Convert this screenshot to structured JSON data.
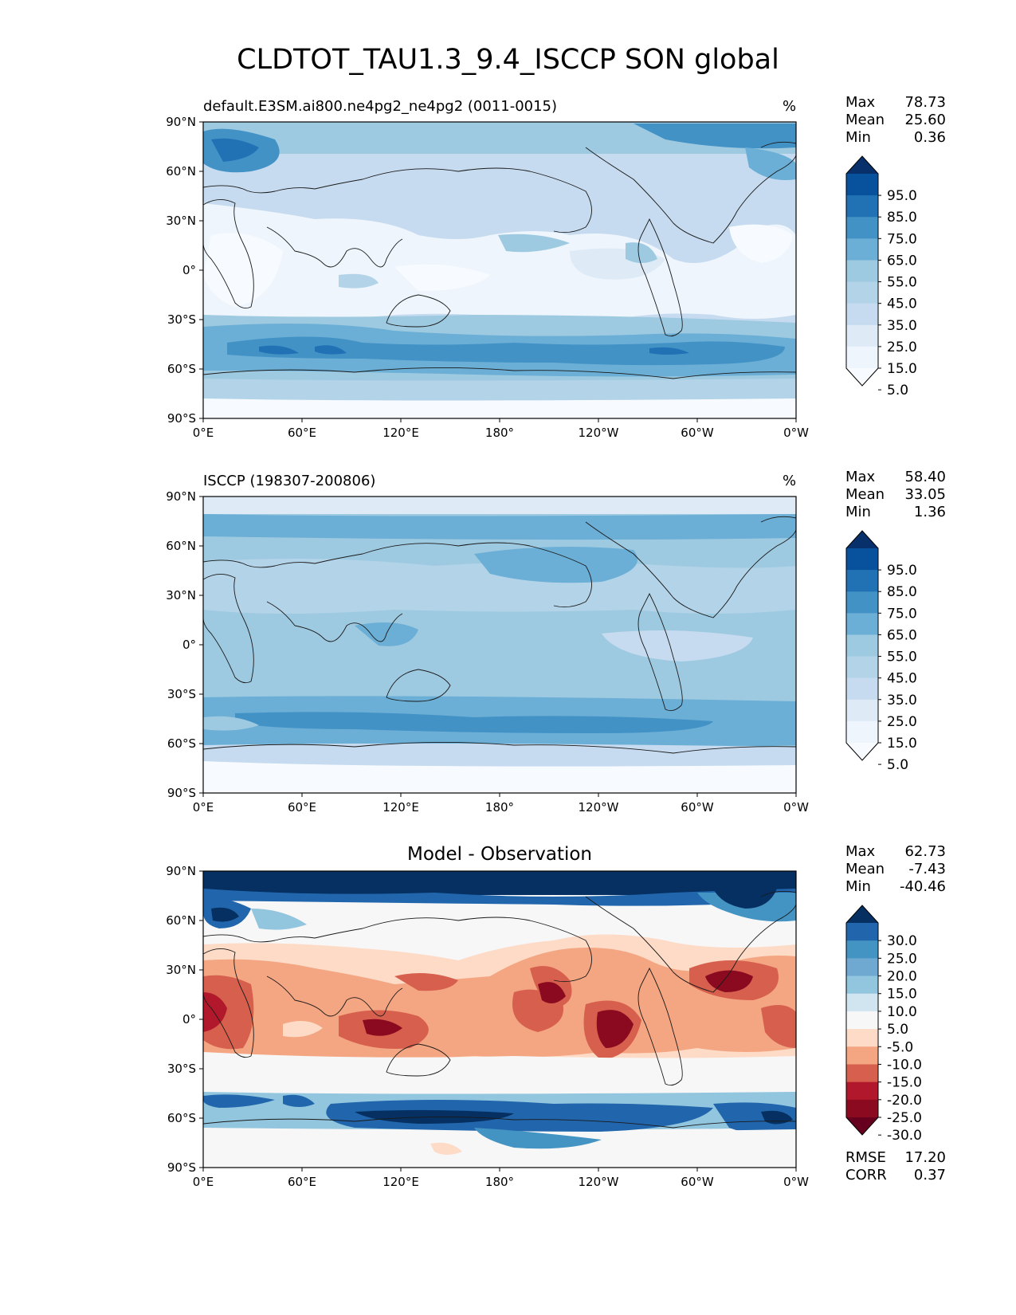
{
  "title": "CLDTOT_TAU1.3_9.4_ISCCP SON global",
  "axes": {
    "lat_labels": [
      "90°N",
      "60°N",
      "30°N",
      "0°",
      "30°S",
      "60°S",
      "90°S"
    ],
    "lon_labels": [
      "0°E",
      "60°E",
      "120°E",
      "180°",
      "120°W",
      "60°W",
      "0°W"
    ]
  },
  "panels": [
    {
      "subtitle": "default.E3SM.ai800.ne4pg2_ne4pg2 (0011-0015)",
      "units": "%",
      "center_title": "",
      "stats": [
        {
          "label": "Max",
          "value": "78.73"
        },
        {
          "label": "Mean",
          "value": "25.60"
        },
        {
          "label": "Min",
          "value": "0.36"
        }
      ],
      "colorbar_labels": [
        "95.0",
        "85.0",
        "75.0",
        "65.0",
        "55.0",
        "45.0",
        "35.0",
        "25.0",
        "15.0",
        "5.0"
      ],
      "colorbar_colors": [
        "#08306b",
        "#08519c",
        "#2171b5",
        "#4292c6",
        "#6baed6",
        "#9ecae1",
        "#b3d3e8",
        "#c6dbef",
        "#deebf7",
        "#eef5fc",
        "#f7fbff"
      ]
    },
    {
      "subtitle": "ISCCP (198307-200806)",
      "units": "%",
      "center_title": "",
      "stats": [
        {
          "label": "Max",
          "value": "58.40"
        },
        {
          "label": "Mean",
          "value": "33.05"
        },
        {
          "label": "Min",
          "value": "1.36"
        }
      ],
      "colorbar_labels": [
        "95.0",
        "85.0",
        "75.0",
        "65.0",
        "55.0",
        "45.0",
        "35.0",
        "25.0",
        "15.0",
        "5.0"
      ],
      "colorbar_colors": [
        "#08306b",
        "#08519c",
        "#2171b5",
        "#4292c6",
        "#6baed6",
        "#9ecae1",
        "#b3d3e8",
        "#c6dbef",
        "#deebf7",
        "#eef5fc",
        "#f7fbff"
      ]
    },
    {
      "subtitle": "",
      "units": "",
      "center_title": "Model - Observation",
      "stats": [
        {
          "label": "Max",
          "value": "62.73"
        },
        {
          "label": "Mean",
          "value": "-7.43"
        },
        {
          "label": "Min",
          "value": "-40.46"
        }
      ],
      "colorbar_labels": [
        "30.0",
        "25.0",
        "20.0",
        "15.0",
        "10.0",
        "5.0",
        "-5.0",
        "-10.0",
        "-15.0",
        "-20.0",
        "-25.0",
        "-30.0"
      ],
      "colorbar_colors": [
        "#053061",
        "#2166ac",
        "#4393c3",
        "#6fa9d2",
        "#92c5de",
        "#d1e5f0",
        "#f7f7f7",
        "#fddbc7",
        "#f4a582",
        "#d6604d",
        "#b2182b",
        "#8b0a20",
        "#67001f"
      ],
      "extra_stats": [
        {
          "label": "RMSE",
          "value": "17.20"
        },
        {
          "label": "CORR",
          "value": "0.37"
        }
      ]
    }
  ]
}
